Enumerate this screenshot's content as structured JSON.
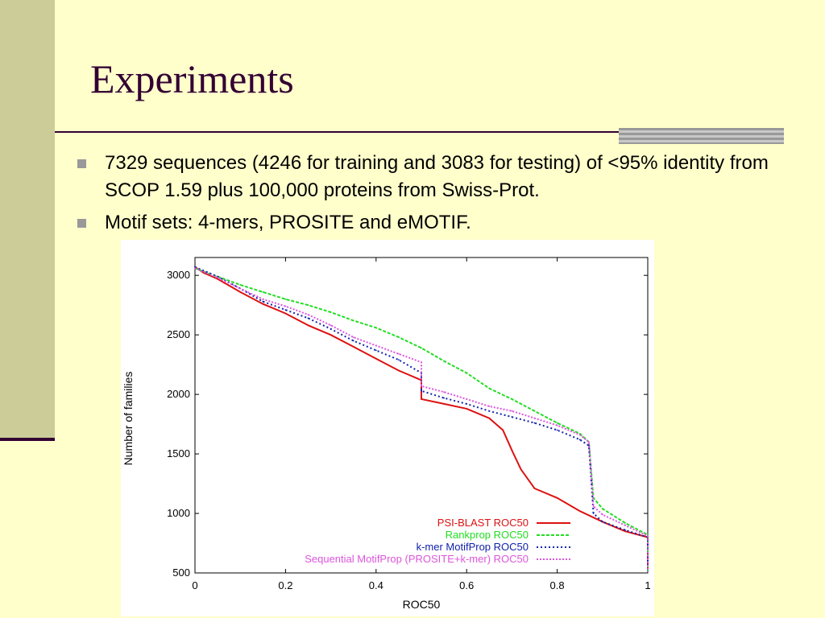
{
  "slide": {
    "title": "Experiments",
    "bullets": [
      "7329 sequences (4246 for training and 3083 for testing) of <95% identity from SCOP 1.59 plus 100,000 proteins from Swiss-Prot.",
      "Motif sets: 4-mers, PROSITE and eMOTIF."
    ]
  },
  "colors": {
    "background": "#ffffcc",
    "left_band": "#cccc99",
    "title_text": "#330033",
    "rule": "#330033",
    "bullet_marker": "#999999"
  },
  "chart_data": {
    "type": "line",
    "title": "",
    "xlabel": "ROC50",
    "ylabel": "Number of families",
    "xlim": [
      0,
      1
    ],
    "ylim": [
      500,
      3150
    ],
    "xticks": [
      "0",
      "0.2",
      "0.4",
      "0.6",
      "0.8",
      "1"
    ],
    "yticks": [
      "500",
      "1000",
      "1500",
      "2000",
      "2500",
      "3000"
    ],
    "legend_position": "bottom-right",
    "series": [
      {
        "name": "PSI-BLAST ROC50",
        "color": "#dd1111",
        "dash": "solid",
        "x": [
          0,
          0.02,
          0.05,
          0.1,
          0.15,
          0.2,
          0.25,
          0.3,
          0.35,
          0.4,
          0.45,
          0.5,
          0.5,
          0.55,
          0.6,
          0.65,
          0.68,
          0.7,
          0.72,
          0.75,
          0.8,
          0.85,
          0.9,
          0.95,
          1.0,
          1.0
        ],
        "y": [
          3070,
          3020,
          2970,
          2860,
          2760,
          2680,
          2580,
          2500,
          2400,
          2300,
          2200,
          2120,
          1960,
          1920,
          1880,
          1800,
          1700,
          1530,
          1370,
          1210,
          1130,
          1020,
          930,
          850,
          800,
          510
        ]
      },
      {
        "name": "Rankprop ROC50",
        "color": "#22dd22",
        "dash": "4,2",
        "x": [
          0,
          0.05,
          0.1,
          0.15,
          0.2,
          0.25,
          0.3,
          0.35,
          0.4,
          0.45,
          0.5,
          0.55,
          0.6,
          0.65,
          0.7,
          0.75,
          0.8,
          0.85,
          0.87,
          0.88,
          0.9,
          0.95,
          1.0,
          1.0
        ],
        "y": [
          3060,
          2990,
          2920,
          2860,
          2800,
          2750,
          2690,
          2620,
          2560,
          2480,
          2390,
          2280,
          2180,
          2050,
          1960,
          1860,
          1760,
          1670,
          1600,
          1130,
          1040,
          920,
          820,
          510
        ]
      },
      {
        "name": "k-mer MotifProp ROC50",
        "color": "#1122aa",
        "dash": "2,3",
        "x": [
          0,
          0.05,
          0.1,
          0.15,
          0.2,
          0.25,
          0.3,
          0.35,
          0.4,
          0.45,
          0.5,
          0.5,
          0.55,
          0.6,
          0.65,
          0.7,
          0.75,
          0.8,
          0.85,
          0.87,
          0.88,
          0.9,
          0.95,
          1.0,
          1.0
        ],
        "y": [
          3070,
          2990,
          2890,
          2780,
          2710,
          2640,
          2550,
          2450,
          2370,
          2290,
          2180,
          2030,
          1970,
          1920,
          1860,
          1810,
          1760,
          1700,
          1620,
          1570,
          1000,
          930,
          860,
          800,
          510
        ]
      },
      {
        "name": "Sequential MotifProp (PROSITE+k-mer) ROC50",
        "color": "#dd55dd",
        "dash": "2,2",
        "x": [
          0,
          0.05,
          0.1,
          0.15,
          0.2,
          0.25,
          0.3,
          0.35,
          0.4,
          0.45,
          0.5,
          0.5,
          0.55,
          0.6,
          0.65,
          0.7,
          0.75,
          0.8,
          0.85,
          0.87,
          0.88,
          0.9,
          0.95,
          1.0,
          1.0
        ],
        "y": [
          3060,
          2980,
          2890,
          2800,
          2740,
          2670,
          2580,
          2480,
          2410,
          2340,
          2270,
          2070,
          2020,
          1960,
          1900,
          1860,
          1800,
          1740,
          1660,
          1600,
          1060,
          990,
          900,
          810,
          510
        ]
      }
    ]
  }
}
